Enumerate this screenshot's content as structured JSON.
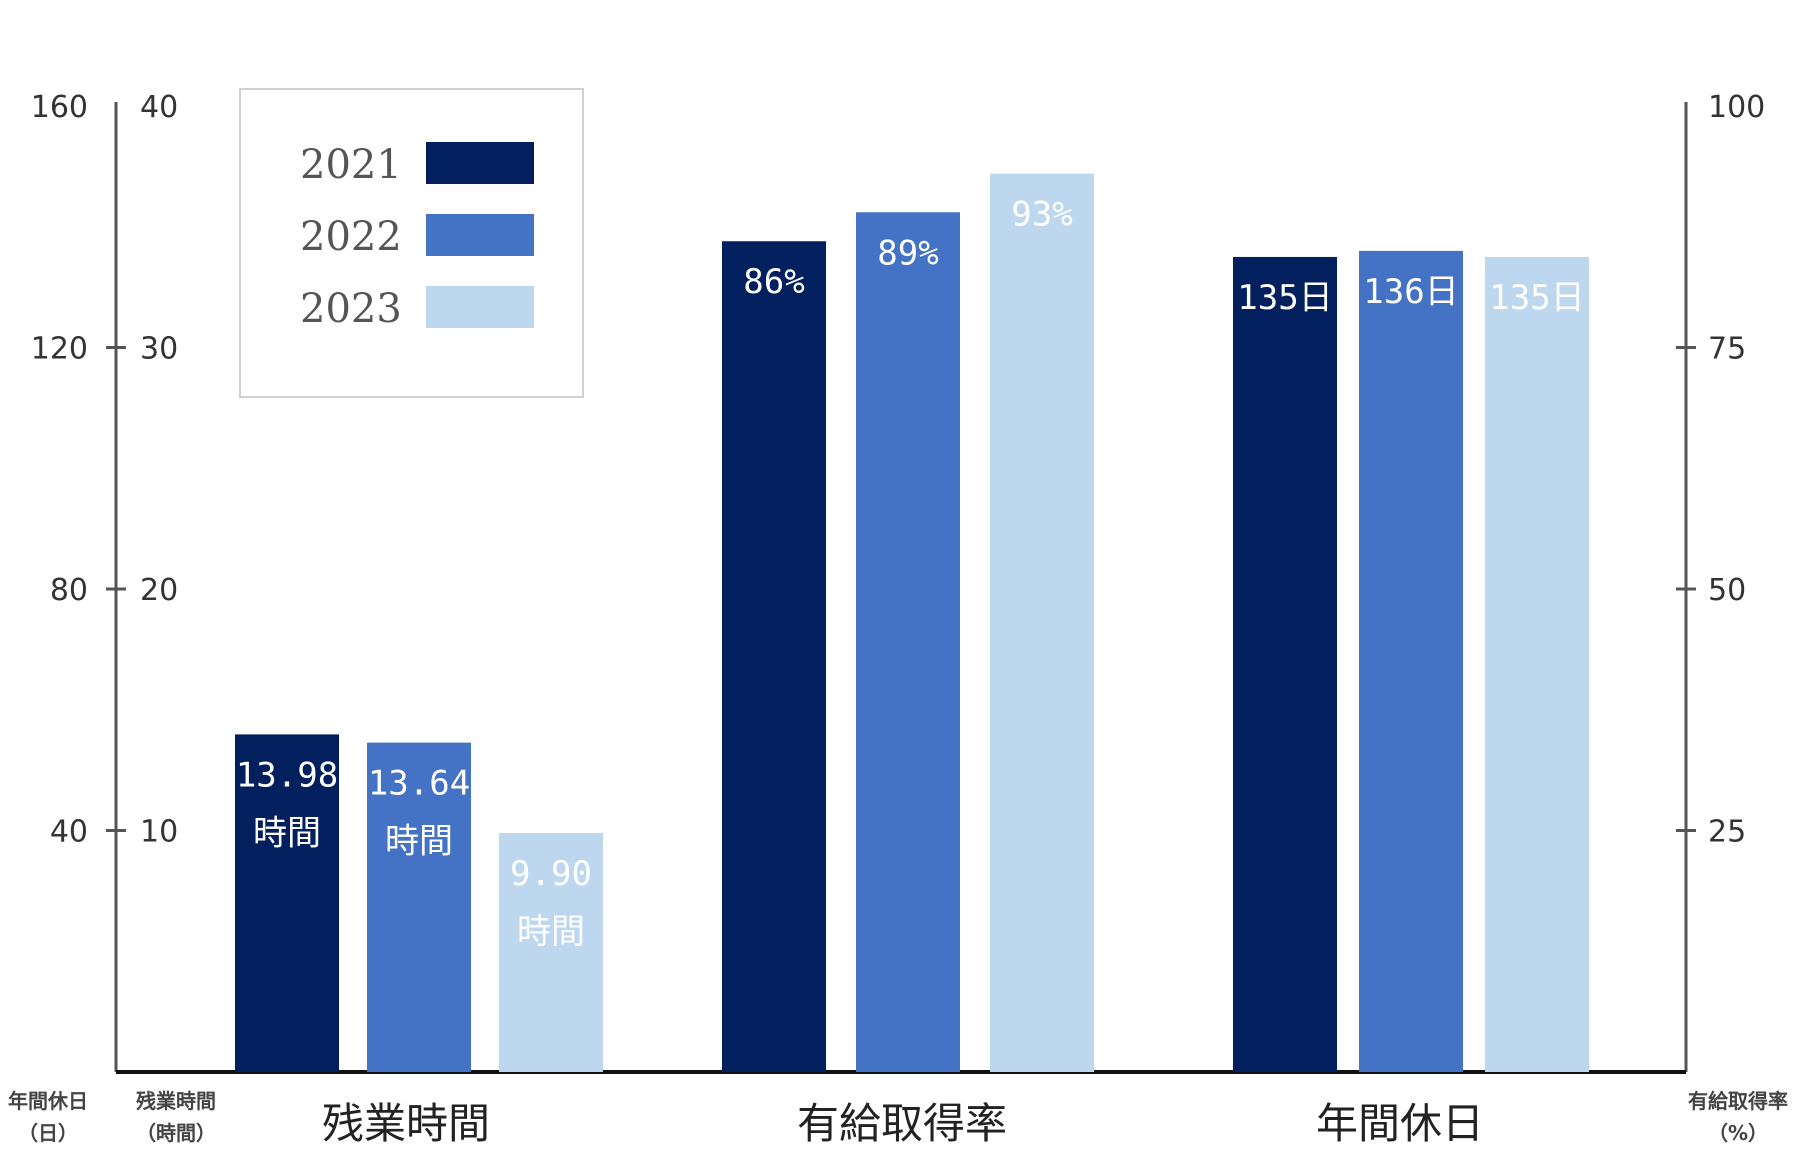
{
  "chart_data": {
    "type": "bar",
    "categories": [
      "残業時間",
      "有給取得率",
      "年間休日"
    ],
    "series": [
      {
        "name": "2021",
        "color": "#03205E",
        "label_color": "#ffffff",
        "values": [
          13.98,
          86,
          135
        ],
        "labels": [
          [
            "13.98",
            "時間"
          ],
          [
            "86%"
          ],
          [
            "135日"
          ]
        ]
      },
      {
        "name": "2022",
        "color": "#4472C4",
        "label_color": "#ffffff",
        "values": [
          13.64,
          89,
          136
        ],
        "labels": [
          [
            "13.64",
            "時間"
          ],
          [
            "89%"
          ],
          [
            "136日"
          ]
        ]
      },
      {
        "name": "2023",
        "color": "#BDD7EE",
        "label_color": "#ffffff",
        "values": [
          9.9,
          93,
          135
        ],
        "labels": [
          [
            "9.90",
            "時間"
          ],
          [
            "93%"
          ],
          [
            "135日"
          ]
        ]
      }
    ],
    "axes": {
      "left_outer": {
        "unit_lines": [
          "年間休日",
          "（日）"
        ],
        "ticks": [
          "40",
          "80",
          "120",
          "160"
        ],
        "values": [
          40,
          80,
          120,
          160
        ],
        "range": [
          0,
          160
        ]
      },
      "left_inner": {
        "unit_lines": [
          "残業時間",
          "（時間）"
        ],
        "ticks": [
          "10",
          "20",
          "30",
          "40"
        ],
        "values": [
          10,
          20,
          30,
          40
        ],
        "range": [
          0,
          40
        ]
      },
      "right": {
        "unit_lines": [
          "有給取得率",
          "（%）"
        ],
        "ticks": [
          "25",
          "50",
          "75",
          "100"
        ],
        "values": [
          25,
          50,
          75,
          100
        ],
        "range": [
          0,
          100
        ]
      }
    },
    "category_axis_map": [
      "left_inner",
      "right",
      "left_outer"
    ],
    "legend_position": "top-left",
    "grid": false
  }
}
